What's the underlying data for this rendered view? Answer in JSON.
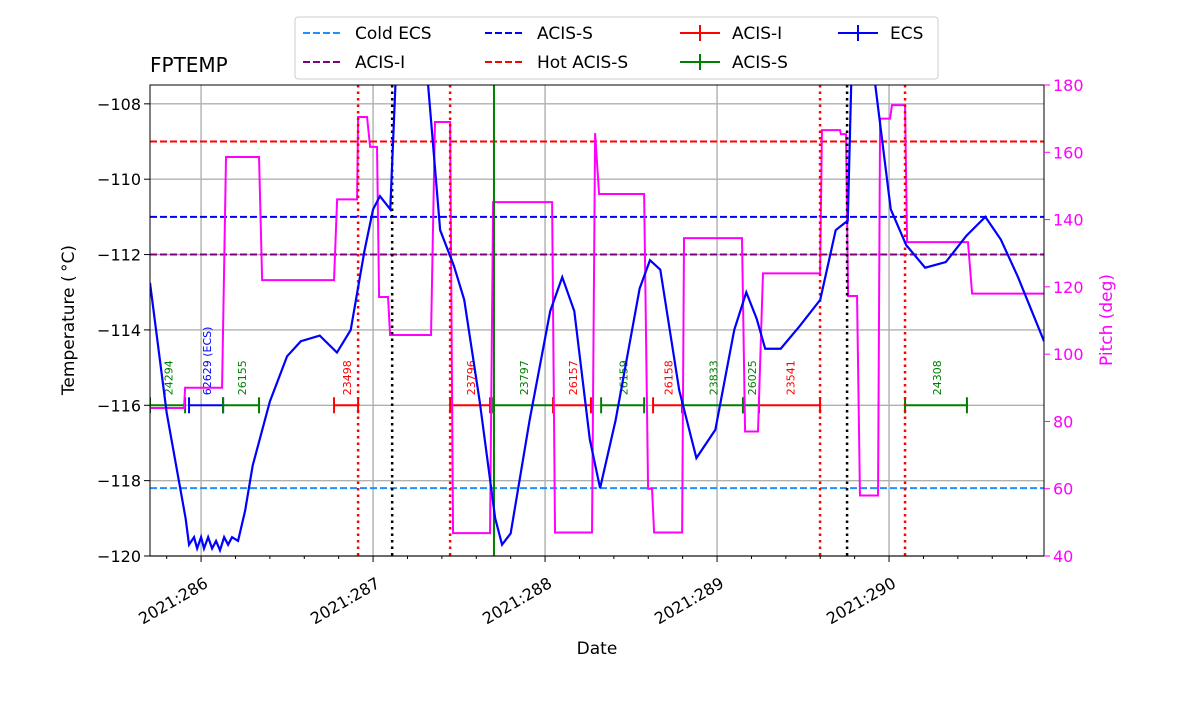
{
  "chart_data": {
    "type": "line",
    "title": "FPTEMP",
    "xlabel": "Date",
    "ylabel": "Temperature ($^\\circ$C)",
    "ylabel_display": "Temperature ( °C)",
    "y2label": "Pitch (deg)",
    "xlim": [
      285.703,
      290.901
    ],
    "ylim": [
      -120,
      -107.5
    ],
    "y2lim": [
      40,
      180
    ],
    "x_ticks": [
      {
        "v": 286,
        "label": "2021:286"
      },
      {
        "v": 287,
        "label": "2021:287"
      },
      {
        "v": 288,
        "label": "2021:288"
      },
      {
        "v": 289,
        "label": "2021:289"
      },
      {
        "v": 290,
        "label": "2021:290"
      }
    ],
    "y_ticks": [
      -120,
      -118,
      -116,
      -114,
      -112,
      -110,
      -108
    ],
    "y2_ticks": [
      40,
      60,
      80,
      100,
      120,
      140,
      160,
      180
    ],
    "grid": true,
    "legend_placement": "top-center",
    "colors": {
      "temp": "#0000ff",
      "pitch": "#ff00ff",
      "cold_ecs": "#1e90ff",
      "acis_s_limit": "#0000ff",
      "acis_i_limit": "#800080",
      "hot_acis_s": "#ff0000",
      "acis_i_obs": "#ff0000",
      "acis_s_obs": "#008000",
      "ecs_obs": "#0000ff",
      "grid": "#b0b0b0"
    },
    "hlines": [
      {
        "name": "Cold ECS",
        "y": -118.2,
        "color": "#1e90ff"
      },
      {
        "name": "ACIS-I",
        "y": -112.0,
        "color": "#800080"
      },
      {
        "name": "ACIS-S",
        "y": -111.0,
        "color": "#0000ff"
      },
      {
        "name": "Hot ACIS-S",
        "y": -109.0,
        "color": "#ff0000"
      }
    ],
    "vlines": [
      {
        "x": 286.913,
        "color": "#ff0000",
        "style": "dotted"
      },
      {
        "x": 287.448,
        "color": "#ff0000",
        "style": "dotted"
      },
      {
        "x": 289.599,
        "color": "#ff0000",
        "style": "dotted"
      },
      {
        "x": 290.093,
        "color": "#ff0000",
        "style": "dotted"
      },
      {
        "x": 287.111,
        "color": "#000000",
        "style": "dotted"
      },
      {
        "x": 289.756,
        "color": "#000000",
        "style": "dotted"
      },
      {
        "x": 287.703,
        "color": "#008000",
        "style": "solid"
      }
    ],
    "obsids": [
      {
        "id": "24294",
        "kind": "ACIS-S",
        "start": 285.703,
        "stop": 285.907
      },
      {
        "id": "62629 (ECS)",
        "kind": "ECS",
        "start": 285.93,
        "stop": 286.128
      },
      {
        "id": "26155",
        "kind": "ACIS-S",
        "start": 286.128,
        "stop": 286.337
      },
      {
        "id": "23498",
        "kind": "ACIS-I",
        "start": 286.773,
        "stop": 286.913
      },
      {
        "id": "23796",
        "kind": "ACIS-I",
        "start": 287.448,
        "stop": 287.68
      },
      {
        "id": "23797",
        "kind": "ACIS-S",
        "start": 287.698,
        "stop": 288.047
      },
      {
        "id": "26157",
        "kind": "ACIS-I",
        "start": 288.047,
        "stop": 288.267
      },
      {
        "id": "26159",
        "kind": "ACIS-S",
        "start": 288.326,
        "stop": 288.576
      },
      {
        "id": "26158",
        "kind": "ACIS-I",
        "start": 288.628,
        "stop": 288.797
      },
      {
        "id": "23833",
        "kind": "ACIS-S",
        "start": 288.797,
        "stop": 289.151
      },
      {
        "id": "26025",
        "kind": "ACIS-S",
        "start": 289.151,
        "stop": 289.244
      },
      {
        "id": "23541",
        "kind": "ACIS-I",
        "start": 289.244,
        "stop": 289.599
      },
      {
        "id": "24308",
        "kind": "ACIS-S",
        "start": 290.093,
        "stop": 290.453
      }
    ],
    "series": [
      {
        "name": "FPTEMP",
        "axis": "left",
        "points": [
          [
            285.703,
            -112.75
          ],
          [
            285.8,
            -116.2
          ],
          [
            285.91,
            -119.0
          ],
          [
            285.93,
            -119.7
          ],
          [
            285.959,
            -119.5
          ],
          [
            285.977,
            -119.8
          ],
          [
            286.0,
            -119.5
          ],
          [
            286.017,
            -119.8
          ],
          [
            286.041,
            -119.5
          ],
          [
            286.064,
            -119.8
          ],
          [
            286.087,
            -119.6
          ],
          [
            286.11,
            -119.85
          ],
          [
            286.134,
            -119.5
          ],
          [
            286.157,
            -119.7
          ],
          [
            286.18,
            -119.5
          ],
          [
            286.215,
            -119.6
          ],
          [
            286.256,
            -118.8
          ],
          [
            286.3,
            -117.6
          ],
          [
            286.4,
            -115.9
          ],
          [
            286.5,
            -114.7
          ],
          [
            286.58,
            -114.3
          ],
          [
            286.69,
            -114.15
          ],
          [
            286.79,
            -114.6
          ],
          [
            286.87,
            -114.0
          ],
          [
            286.95,
            -111.9
          ],
          [
            287.0,
            -110.8
          ],
          [
            287.04,
            -110.45
          ],
          [
            287.1,
            -110.8
          ],
          [
            287.13,
            -107.5
          ],
          [
            287.22,
            -105.0
          ],
          [
            287.32,
            -107.5
          ],
          [
            287.39,
            -111.35
          ],
          [
            287.47,
            -112.3
          ],
          [
            287.53,
            -113.2
          ],
          [
            287.62,
            -115.9
          ],
          [
            287.71,
            -119.0
          ],
          [
            287.75,
            -119.7
          ],
          [
            287.8,
            -119.4
          ],
          [
            287.91,
            -116.4
          ],
          [
            288.03,
            -113.5
          ],
          [
            288.1,
            -112.6
          ],
          [
            288.17,
            -113.5
          ],
          [
            288.26,
            -116.9
          ],
          [
            288.32,
            -118.2
          ],
          [
            288.41,
            -116.4
          ],
          [
            288.55,
            -112.9
          ],
          [
            288.61,
            -112.15
          ],
          [
            288.67,
            -112.4
          ],
          [
            288.78,
            -115.6
          ],
          [
            288.88,
            -117.4
          ],
          [
            288.99,
            -116.65
          ],
          [
            289.1,
            -114.0
          ],
          [
            289.17,
            -113.0
          ],
          [
            289.23,
            -113.7
          ],
          [
            289.28,
            -114.5
          ],
          [
            289.37,
            -114.5
          ],
          [
            289.48,
            -113.9
          ],
          [
            289.6,
            -113.2
          ],
          [
            289.69,
            -111.35
          ],
          [
            289.76,
            -111.1
          ],
          [
            289.78,
            -107.5
          ],
          [
            289.85,
            -105.0
          ],
          [
            289.92,
            -107.5
          ],
          [
            290.01,
            -110.8
          ],
          [
            290.1,
            -111.75
          ],
          [
            290.21,
            -112.35
          ],
          [
            290.33,
            -112.2
          ],
          [
            290.45,
            -111.5
          ],
          [
            290.56,
            -111.0
          ],
          [
            290.65,
            -111.6
          ],
          [
            290.75,
            -112.6
          ],
          [
            290.901,
            -114.3
          ]
        ]
      },
      {
        "name": "Pitch",
        "axis": "right",
        "points": [
          [
            285.703,
            84
          ],
          [
            285.901,
            84
          ],
          [
            285.907,
            90
          ],
          [
            286.122,
            90
          ],
          [
            286.145,
            158.6
          ],
          [
            286.337,
            158.6
          ],
          [
            286.355,
            122
          ],
          [
            286.773,
            122
          ],
          [
            286.791,
            146
          ],
          [
            286.907,
            146
          ],
          [
            286.913,
            170.5
          ],
          [
            286.965,
            170.5
          ],
          [
            286.983,
            161.6
          ],
          [
            287.023,
            161.6
          ],
          [
            287.035,
            117
          ],
          [
            287.087,
            117
          ],
          [
            287.099,
            105.7
          ],
          [
            287.337,
            105.7
          ],
          [
            287.36,
            169
          ],
          [
            287.448,
            169
          ],
          [
            287.465,
            46.8
          ],
          [
            287.68,
            46.8
          ],
          [
            287.698,
            145.2
          ],
          [
            288.041,
            145.2
          ],
          [
            288.058,
            47
          ],
          [
            288.273,
            47
          ],
          [
            288.291,
            165.7
          ],
          [
            288.314,
            147.6
          ],
          [
            288.576,
            147.6
          ],
          [
            288.599,
            60
          ],
          [
            288.622,
            60
          ],
          [
            288.634,
            47
          ],
          [
            288.797,
            47
          ],
          [
            288.808,
            134.5
          ],
          [
            289.145,
            134.5
          ],
          [
            289.163,
            77
          ],
          [
            289.238,
            77
          ],
          [
            289.267,
            124
          ],
          [
            289.599,
            124
          ],
          [
            289.61,
            166.6
          ],
          [
            289.715,
            166.6
          ],
          [
            289.72,
            165.4
          ],
          [
            289.75,
            165.4
          ],
          [
            289.762,
            117.3
          ],
          [
            289.814,
            117.3
          ],
          [
            289.831,
            58
          ],
          [
            289.936,
            58
          ],
          [
            289.948,
            170
          ],
          [
            290.006,
            170
          ],
          [
            290.017,
            174
          ],
          [
            290.093,
            174
          ],
          [
            290.105,
            133.3
          ],
          [
            290.459,
            133.3
          ],
          [
            290.483,
            118
          ],
          [
            290.901,
            118
          ]
        ]
      }
    ],
    "legend": [
      {
        "label": "Cold ECS",
        "style": "dashed",
        "color": "#1e90ff"
      },
      {
        "label": "ACIS-I",
        "style": "dashed",
        "color": "#800080"
      },
      {
        "label": "ACIS-S",
        "style": "dashed",
        "color": "#0000ff"
      },
      {
        "label": "Hot ACIS-S",
        "style": "dashed",
        "color": "#ff0000"
      },
      {
        "label": "ACIS-I",
        "style": "errorbar",
        "color": "#ff0000"
      },
      {
        "label": "ACIS-S",
        "style": "errorbar",
        "color": "#008000"
      },
      {
        "label": "ECS",
        "style": "errorbar",
        "color": "#0000ff"
      }
    ]
  }
}
